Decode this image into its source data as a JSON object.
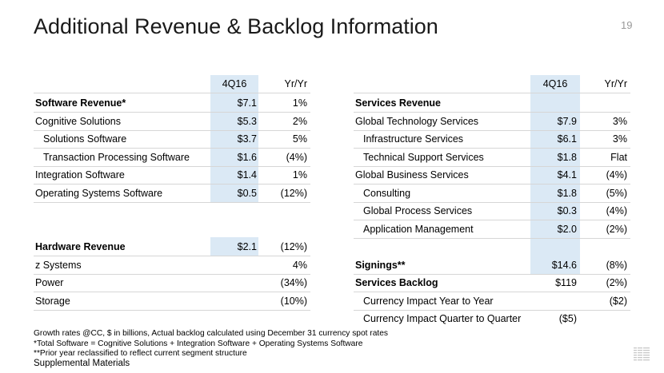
{
  "title": "Additional Revenue & Backlog Information",
  "page_number": "19",
  "left_table": {
    "headers": {
      "col1": "4Q16",
      "col2": "Yr/Yr"
    },
    "rows": [
      {
        "label": "Software Revenue*",
        "v1": "$7.1",
        "v2": "1%",
        "bold": true,
        "indent": false
      },
      {
        "label": "Cognitive Solutions",
        "v1": "$5.3",
        "v2": "2%",
        "bold": false,
        "indent": false
      },
      {
        "label": "Solutions Software",
        "v1": "$3.7",
        "v2": "5%",
        "bold": false,
        "indent": true
      },
      {
        "label": "Transaction Processing Software",
        "v1": "$1.6",
        "v2": "(4%)",
        "bold": false,
        "indent": true
      },
      {
        "label": "Integration Software",
        "v1": "$1.4",
        "v2": "1%",
        "bold": false,
        "indent": false
      },
      {
        "label": "Operating Systems Software",
        "v1": "$0.5",
        "v2": "(12%)",
        "bold": false,
        "indent": false
      },
      {
        "label": "Hardware Revenue",
        "v1": "$2.1",
        "v2": "(12%)",
        "bold": true,
        "indent": false
      },
      {
        "label": "z Systems",
        "v1": "",
        "v2": "4%",
        "bold": false,
        "indent": false
      },
      {
        "label": "Power",
        "v1": "",
        "v2": "(34%)",
        "bold": false,
        "indent": false
      },
      {
        "label": "Storage",
        "v1": "",
        "v2": "(10%)",
        "bold": false,
        "indent": false
      }
    ]
  },
  "right_table": {
    "headers": {
      "col1": "4Q16",
      "col2": "Yr/Yr"
    },
    "rows": [
      {
        "label": "Services Revenue",
        "v1": "",
        "v2": "",
        "bold": true,
        "indent": false
      },
      {
        "label": "Global Technology Services",
        "v1": "$7.9",
        "v2": "3%",
        "bold": false,
        "indent": false
      },
      {
        "label": "Infrastructure Services",
        "v1": "$6.1",
        "v2": "3%",
        "bold": false,
        "indent": true
      },
      {
        "label": "Technical Support Services",
        "v1": "$1.8",
        "v2": "Flat",
        "bold": false,
        "indent": true
      },
      {
        "label": "Global Business Services",
        "v1": "$4.1",
        "v2": "(4%)",
        "bold": false,
        "indent": false
      },
      {
        "label": "Consulting",
        "v1": "$1.8",
        "v2": "(5%)",
        "bold": false,
        "indent": true
      },
      {
        "label": "Global Process Services",
        "v1": "$0.3",
        "v2": "(4%)",
        "bold": false,
        "indent": true
      },
      {
        "label": "Application Management",
        "v1": "$2.0",
        "v2": "(2%)",
        "bold": false,
        "indent": true
      },
      {
        "label": "Signings**",
        "v1": "$14.6",
        "v2": "(8%)",
        "bold": true,
        "indent": false
      },
      {
        "label": "Services Backlog",
        "v1": "$119",
        "v2": "(2%)",
        "bold": true,
        "indent": false
      },
      {
        "label": "Currency Impact Year to Year",
        "v1": "",
        "v2": "($2)",
        "bold": false,
        "indent": true
      },
      {
        "label": "Currency Impact Quarter to Quarter",
        "v1": "($5)",
        "v2": "",
        "bold": false,
        "indent": true
      }
    ]
  },
  "footnotes": [
    "Growth rates @CC, $ in billions, Actual backlog calculated using December 31 currency spot rates",
    "*Total Software = Cognitive Solutions + Integration Software + Operating Systems Software",
    "**Prior year reclassified to reflect current segment structure"
  ],
  "supplemental": "Supplemental Materials",
  "logo_text": "IBM",
  "colors": {
    "highlight": "#dbe9f5",
    "rule": "#d6d6d6"
  }
}
